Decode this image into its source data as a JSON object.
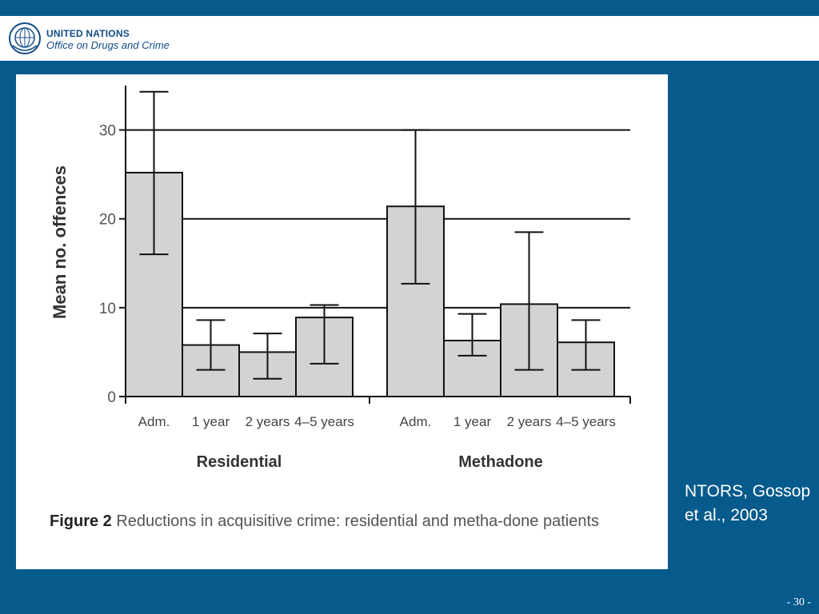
{
  "header": {
    "org_line1": "UNITED NATIONS",
    "org_line2": "Office on Drugs and Crime"
  },
  "figure": {
    "caption_label": "Figure 2",
    "caption_text": "Reductions in acquisitive crime: residential and metha-done patients"
  },
  "source": "NTORS, Gossop et al., 2003",
  "page_number": "- 30 -",
  "colors": {
    "background": "#075a8c",
    "bar_fill": "#d3d3d3",
    "header_text": "#134c87"
  },
  "chart_data": {
    "type": "bar",
    "ylabel": "Mean no. offences",
    "ylim": [
      0,
      35
    ],
    "yticks": [
      0,
      10,
      20,
      30
    ],
    "grid": "horizontal at 10, 20, 30",
    "groups": [
      {
        "name": "Residential",
        "categories": [
          "Adm.",
          "1 year",
          "2 years",
          "4–5 years"
        ],
        "values": [
          25.2,
          5.8,
          5.0,
          8.9
        ],
        "error_low": [
          16.0,
          3.0,
          2.0,
          3.7
        ],
        "error_high": [
          34.3,
          8.6,
          7.1,
          10.3
        ]
      },
      {
        "name": "Methadone",
        "categories": [
          "Adm.",
          "1 year",
          "2 years",
          "4–5 years"
        ],
        "values": [
          21.4,
          6.3,
          10.4,
          6.1
        ],
        "error_low": [
          12.7,
          4.6,
          3.0,
          3.0
        ],
        "error_high": [
          30.0,
          9.3,
          18.5,
          8.6
        ]
      }
    ]
  }
}
